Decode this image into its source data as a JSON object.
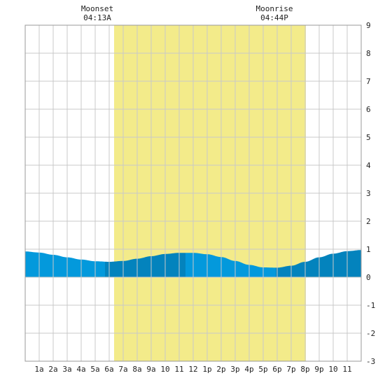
{
  "header": {
    "moonset_label": "Moonset",
    "moonset_time": "04:13A",
    "moonrise_label": "Moonrise",
    "moonrise_time": "04:44P"
  },
  "colors": {
    "daylight": "#f3eb8a",
    "grid": "#c8c8c8",
    "border": "#9a9a9a",
    "tide_light": "#0399dc",
    "tide_dark": "#0383bd",
    "background": "#ffffff"
  },
  "chart_data": {
    "type": "area",
    "title": "",
    "xlabel": "",
    "ylabel": "",
    "xlim": [
      0,
      24
    ],
    "ylim": [
      -3,
      9
    ],
    "grid": true,
    "x_tick_labels": [
      "1a",
      "2a",
      "3a",
      "4a",
      "5a",
      "6a",
      "7a",
      "8a",
      "9a",
      "10",
      "11",
      "12",
      "1p",
      "2p",
      "3p",
      "4p",
      "5p",
      "6p",
      "7p",
      "8p",
      "9p",
      "10",
      "11"
    ],
    "y_tick_labels": [
      "-3",
      "-2",
      "-1",
      "0",
      "1",
      "2",
      "3",
      "4",
      "5",
      "6",
      "7",
      "8",
      "9"
    ],
    "daylight_band": {
      "start_hour": 6.35,
      "end_hour": 20.05
    },
    "moon_events": [
      {
        "label": "Moonset",
        "time": "04:13A",
        "hour": 4.22
      },
      {
        "label": "Moonrise",
        "time": "04:44P",
        "hour": 16.73
      }
    ],
    "tide_series": {
      "name": "",
      "x": [
        0,
        1,
        2,
        3,
        4,
        5,
        6,
        7,
        8,
        9,
        10,
        11,
        12,
        13,
        14,
        15,
        16,
        17,
        18,
        19,
        20,
        21,
        22,
        23,
        24
      ],
      "y": [
        0.92,
        0.88,
        0.8,
        0.71,
        0.63,
        0.57,
        0.55,
        0.58,
        0.66,
        0.75,
        0.83,
        0.87,
        0.87,
        0.82,
        0.72,
        0.58,
        0.44,
        0.35,
        0.34,
        0.41,
        0.55,
        0.71,
        0.84,
        0.93,
        0.97
      ]
    },
    "tide_shading_segments": [
      {
        "start_hour": 0,
        "end_hour": 5.7,
        "shade": "light"
      },
      {
        "start_hour": 5.7,
        "end_hour": 11.45,
        "shade": "dark"
      },
      {
        "start_hour": 11.45,
        "end_hour": 17.9,
        "shade": "light"
      },
      {
        "start_hour": 17.9,
        "end_hour": 24,
        "shade": "dark"
      }
    ]
  }
}
